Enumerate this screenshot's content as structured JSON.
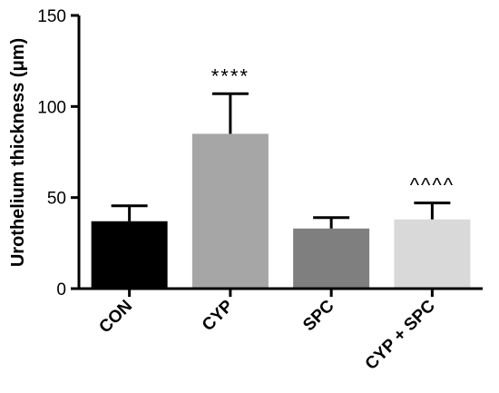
{
  "chart_data": {
    "type": "bar",
    "title": "",
    "xlabel": "",
    "ylabel": "Urothelium thickness (μm)",
    "ylim": [
      0,
      150
    ],
    "yticks": [
      0,
      50,
      100,
      150
    ],
    "categories": [
      "CON",
      "CYP",
      "SPC",
      "CYP + SPC"
    ],
    "values": [
      37,
      85,
      33,
      38
    ],
    "errors": [
      8.5,
      22,
      6,
      9
    ],
    "colors": [
      "#000000",
      "#a6a6a6",
      "#7f7f7f",
      "#d9d9d9"
    ],
    "annotations": [
      "",
      "****",
      "",
      "^^^^"
    ],
    "grid": false,
    "legend": "none"
  }
}
